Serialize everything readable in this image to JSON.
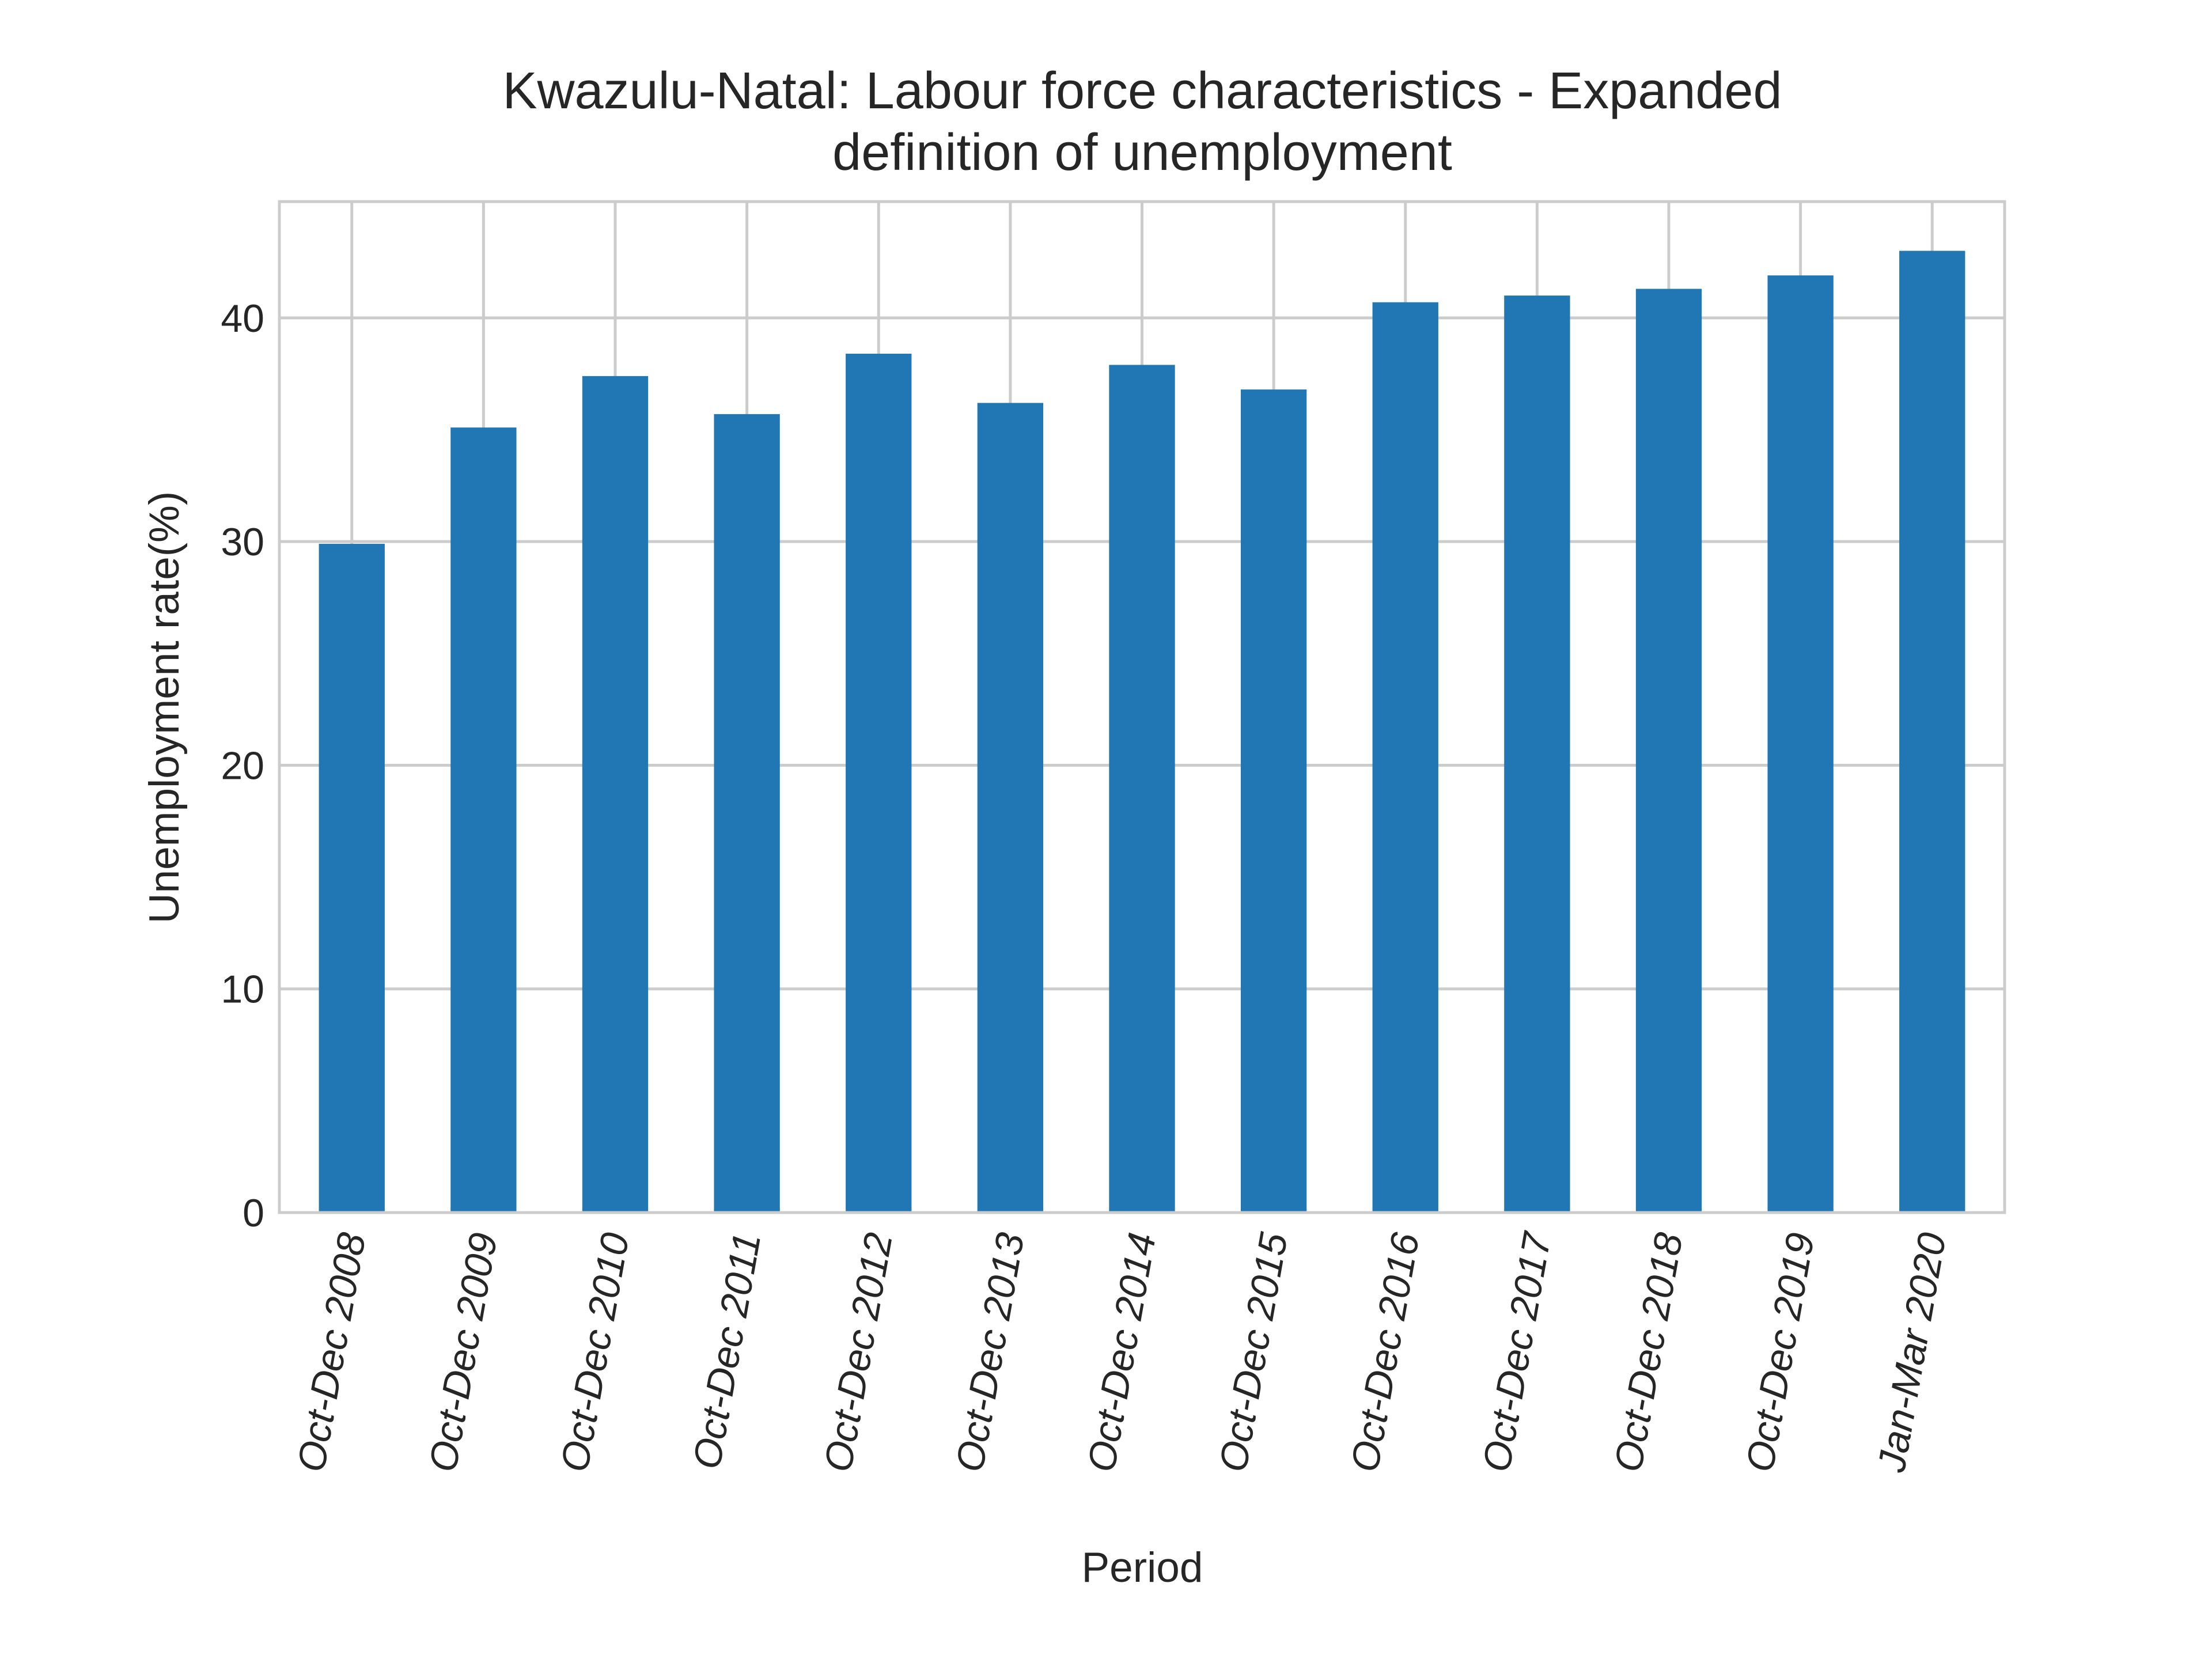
{
  "chart_data": {
    "type": "bar",
    "title": "Kwazulu-Natal: Labour force characteristics - Expanded definition of unemployment",
    "title_lines": [
      "Kwazulu-Natal: Labour force characteristics - Expanded",
      "definition of unemployment"
    ],
    "xlabel": "Period",
    "ylabel": "Unemployment rate(%)",
    "categories": [
      "Oct-Dec 2008",
      "Oct-Dec 2009",
      "Oct-Dec 2010",
      "Oct-Dec 2011",
      "Oct-Dec 2012",
      "Oct-Dec 2013",
      "Oct-Dec 2014",
      "Oct-Dec 2015",
      "Oct-Dec 2016",
      "Oct-Dec 2017",
      "Oct-Dec 2018",
      "Oct-Dec 2019",
      "Jan-Mar 2020"
    ],
    "values": [
      29.9,
      35.1,
      37.4,
      35.7,
      38.4,
      36.2,
      37.9,
      36.8,
      40.7,
      41.0,
      41.3,
      41.9,
      43.0
    ],
    "ylim": [
      0,
      45.2
    ],
    "yticks": [
      "0",
      "10",
      "20",
      "30",
      "40"
    ],
    "grid": true,
    "legend": "none",
    "colors": {
      "bar": "#2077b4",
      "grid": "#cccccc",
      "frame": "#cccccc",
      "text": "#262626",
      "background": "#ffffff"
    }
  }
}
